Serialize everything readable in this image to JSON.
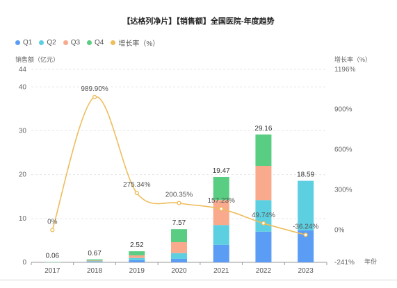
{
  "chart_data": {
    "type": "bar",
    "title": "【达格列净片】【销售额】全国医院-年度趋势",
    "ylabel": "销售额（亿元）",
    "y2label": "增长率（%）",
    "xlabel": "年份",
    "categories": [
      "2017",
      "2018",
      "2019",
      "2020",
      "2021",
      "2022",
      "2023"
    ],
    "stacked": true,
    "ylim": [
      0,
      44
    ],
    "yticks": [
      0,
      10,
      20,
      30,
      40,
      44
    ],
    "y2lim": [
      -241,
      1196
    ],
    "y2ticks": [
      "-241%",
      "0%",
      "300%",
      "600%",
      "900%",
      "1196%"
    ],
    "y2tick_values": [
      -241,
      0,
      300,
      600,
      900,
      1196
    ],
    "series": [
      {
        "name": "Q1",
        "color": "#5b9cf4",
        "values": [
          0.02,
          0.12,
          0.5,
          0.8,
          4.0,
          7.0,
          7.3
        ]
      },
      {
        "name": "Q2",
        "color": "#5ccfe0",
        "values": [
          0.01,
          0.13,
          0.5,
          1.3,
          4.5,
          7.2,
          11.29
        ]
      },
      {
        "name": "Q3",
        "color": "#f9a98c",
        "values": [
          0.01,
          0.17,
          0.6,
          2.5,
          5.7,
          7.8,
          0
        ]
      },
      {
        "name": "Q4",
        "color": "#59cd82",
        "values": [
          0.02,
          0.25,
          0.92,
          2.97,
          5.27,
          7.16,
          0
        ]
      }
    ],
    "totals": [
      "0.06",
      "0.67",
      "2.52",
      "7.57",
      "19.47",
      "29.16",
      "18.59"
    ],
    "growth": {
      "name": "增长率（%）",
      "color": "#eebd5c",
      "values": [
        0,
        989.9,
        275.34,
        200.35,
        157.23,
        49.74,
        -36.24
      ],
      "labels": [
        "0%",
        "989.90%",
        "275.34%",
        "200.35%",
        "157.23%",
        "49.74%",
        "-36.24%"
      ]
    },
    "grid": true,
    "legend_position": "top-left"
  }
}
